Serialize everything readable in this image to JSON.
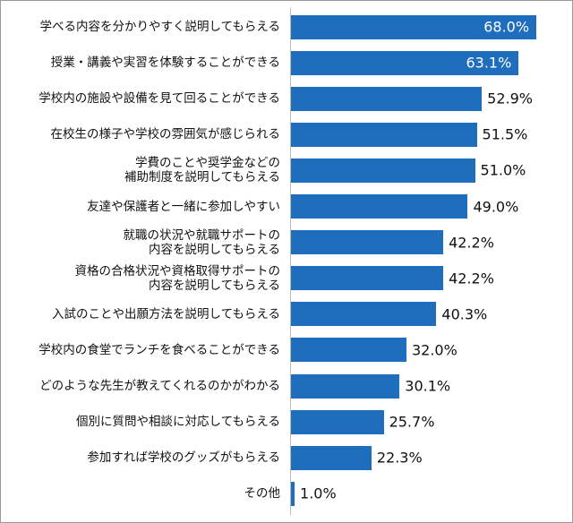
{
  "chart_data": {
    "type": "bar",
    "orientation": "horizontal",
    "color": "#1f6dbd",
    "categories": [
      "学べる内容を分かりやすく説明してもらえる",
      "授業・講義や実習を体験することができる",
      "学校内の施設や設備を見て回ることができる",
      "在校生の様子や学校の雰囲気が感じられる",
      "学費のことや奨学金などの\n補助制度を説明してもらえる",
      "友達や保護者と一緒に参加しやすい",
      "就職の状況や就職サポートの\n内容を説明してもらえる",
      "資格の合格状況や資格取得サポートの\n内容を説明してもらえる",
      "入試のことや出願方法を説明してもらえる",
      "学校内の食堂でランチを食べることができる",
      "どのような先生が教えてくれるのかがわかる",
      "個別に質問や相談に対応してもらえる",
      "参加すれば学校のグッズがもらえる",
      "その他"
    ],
    "values": [
      68.0,
      63.1,
      52.9,
      51.5,
      51.0,
      49.0,
      42.2,
      42.2,
      40.3,
      32.0,
      30.1,
      25.7,
      22.3,
      1.0
    ],
    "value_labels": [
      "68.0%",
      "63.1%",
      "52.9%",
      "51.5%",
      "51.0%",
      "49.0%",
      "42.2%",
      "42.2%",
      "40.3%",
      "32.0%",
      "30.1%",
      "25.7%",
      "22.3%",
      "1.0%"
    ]
  }
}
